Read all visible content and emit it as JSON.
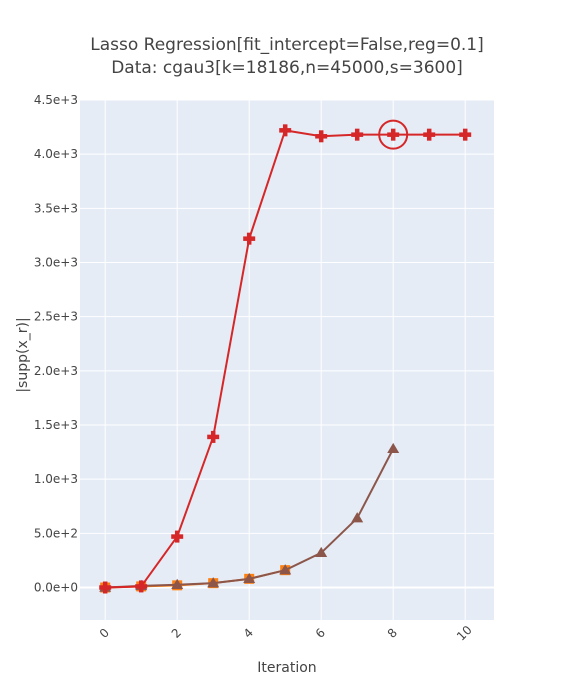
{
  "chart_data": {
    "type": "line",
    "title_line1": "Lasso Regression[fit_intercept=False,reg=0.1]",
    "title_line2": "Data: cgau3[k=18186,n=45000,s=3600]",
    "xlabel": "Iteration",
    "ylabel": "|supp(x_r)|",
    "xlim": [
      -0.7,
      10.8
    ],
    "ylim": [
      -300,
      4500
    ],
    "x_ticks": [
      0,
      2,
      4,
      6,
      8,
      10
    ],
    "y_ticks": [
      0,
      500,
      1000,
      1500,
      2000,
      2500,
      3000,
      3500,
      4000,
      4500
    ],
    "y_tick_labels": [
      "0.0e+0",
      "5.0e+2",
      "1.0e+3",
      "1.5e+3",
      "2.0e+3",
      "2.5e+3",
      "3.0e+3",
      "3.5e+3",
      "4.0e+3",
      "4.5e+3"
    ],
    "grid": true,
    "plot_bg": "#e5ecf6",
    "series": [
      {
        "marker": "cross",
        "color": "#d62728",
        "x": [
          0,
          1,
          2,
          3,
          4,
          5,
          6,
          7,
          8,
          9,
          10
        ],
        "y": [
          0,
          10,
          470,
          1390,
          3220,
          4220,
          4165,
          4180,
          4180,
          4180,
          4180
        ]
      },
      {
        "marker": "triangle-up",
        "color": "#8c564b",
        "x": [
          0,
          1,
          2,
          3,
          4,
          5,
          6,
          7,
          8
        ],
        "y": [
          0,
          15,
          25,
          40,
          80,
          160,
          320,
          640,
          1280
        ]
      },
      {
        "marker": "square",
        "color": "#ff7f0e",
        "x": [
          0,
          1,
          2,
          3,
          4,
          5
        ],
        "y": [
          0,
          10,
          20,
          40,
          80,
          160
        ]
      }
    ],
    "highlight": {
      "x": 8,
      "y": 4180,
      "color": "#d62728"
    }
  }
}
